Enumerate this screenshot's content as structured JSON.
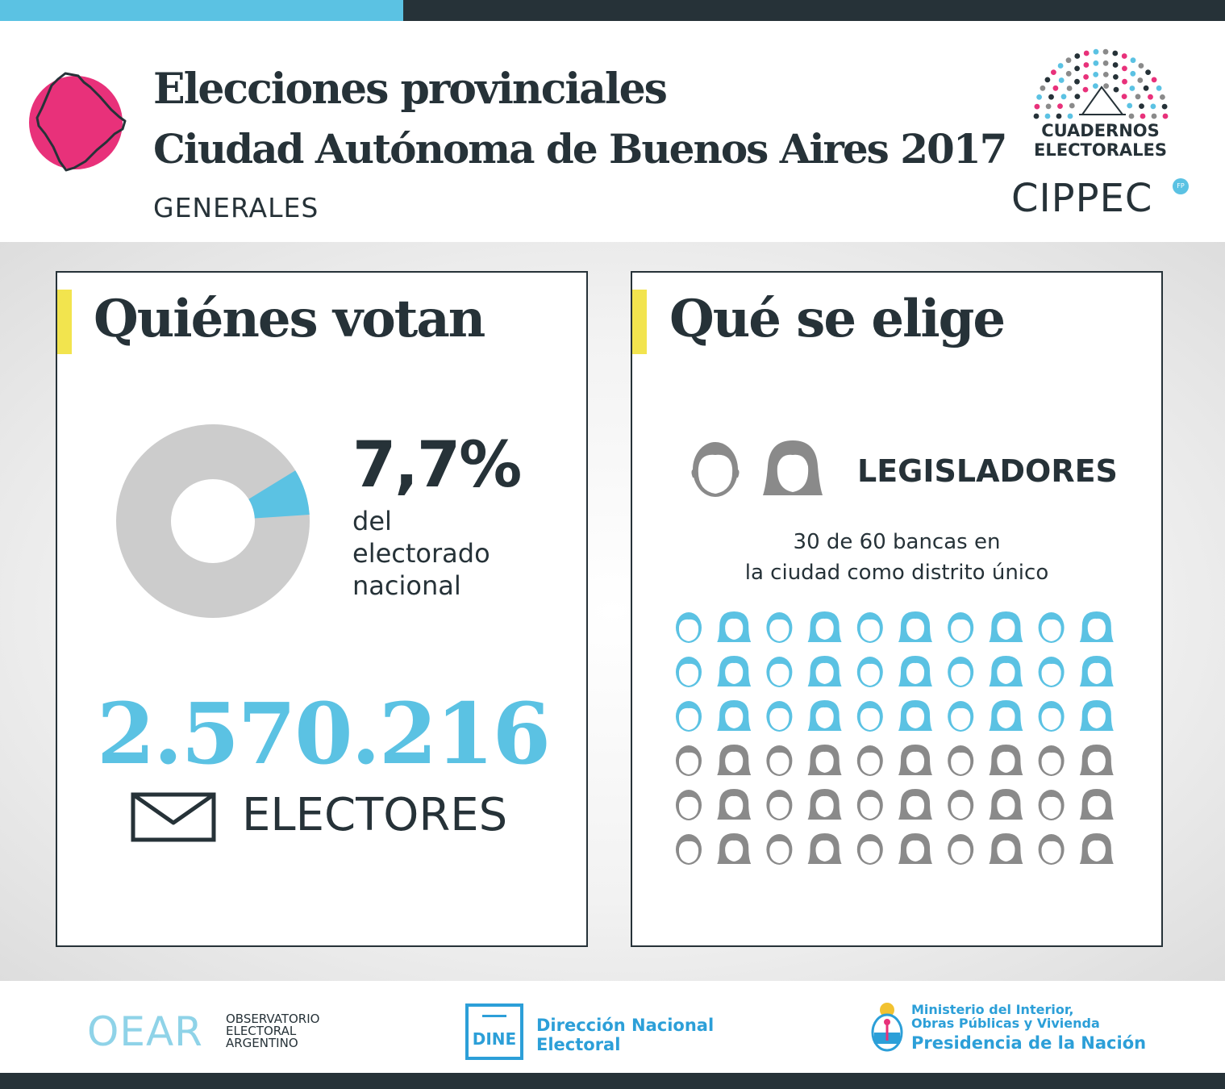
{
  "header": {
    "title_line1": "Elecciones provinciales",
    "title_line2": "Ciudad Autónoma de Buenos Aires 2017",
    "subtitle": "GENERALES",
    "logo_cuadernos": "CUADERNOS\nELECTORALES",
    "logo_cippec": "CIPPEC",
    "logo_cippec_badge": "FP",
    "map_icon": "buenos-aires-city-map-icon",
    "accent_pink": "#e8317a"
  },
  "left_panel": {
    "title": "Quiénes votan",
    "percent_value": "7,7%",
    "percent_desc": [
      "del",
      "electorado",
      "nacional"
    ],
    "percent_numeric": 7.7,
    "electors_count": "2.570.216",
    "electors_label": "ELECTORES",
    "electors_icon": "envelope-icon",
    "donut_colors": {
      "share": "#5bc2e3",
      "rest": "#cccccc"
    }
  },
  "right_panel": {
    "title": "Qué se elige",
    "office_label": "LEGISLADORES",
    "office_icons": [
      "male-head-icon",
      "female-head-icon"
    ],
    "seats_line1": "30 de 60 bancas en",
    "seats_line2": "la ciudad como distrito único",
    "seats_elected": 30,
    "seats_total": 60,
    "seat_colors": {
      "elected": "#5bc2e3",
      "other": "#8a8a8a"
    }
  },
  "footer": {
    "oear_mark": "OEAR",
    "oear_text": [
      "OBSERVATORIO",
      "ELECTORAL",
      "ARGENTINO"
    ],
    "dine_label": "DINE",
    "dne_text": [
      "Dirección Nacional",
      "Electoral"
    ],
    "ministry_text": [
      "Ministerio del Interior,",
      "Obras Públicas y Vivienda"
    ],
    "presidency_text": "Presidencia de la Nación",
    "brand_blue": "#2c9fd8"
  },
  "colors": {
    "dark": "#263238",
    "blue": "#5bc2e3",
    "yellow": "#f2e44e"
  }
}
